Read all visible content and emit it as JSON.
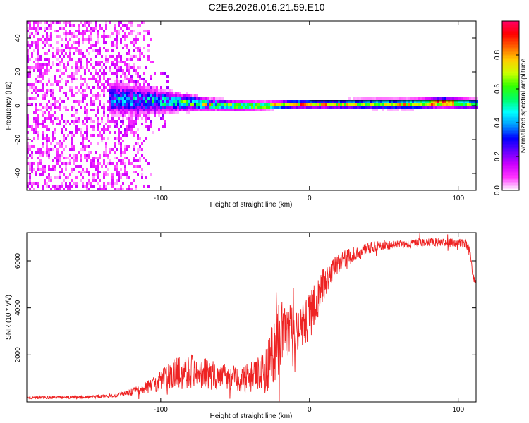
{
  "title": "C2E6.2026.016.21.59.E10",
  "colors": {
    "snr_line": "#ee2222",
    "axes": "#000000"
  },
  "chart_data": [
    {
      "type": "heatmap",
      "name": "spectrogram",
      "xlabel": "Height of straight line (km)",
      "ylabel": "Frequency (Hz)",
      "xlim": [
        -190,
        112
      ],
      "ylim": [
        -50,
        50
      ],
      "xticks": [
        -100,
        0,
        100
      ],
      "yticks": [
        -40,
        -20,
        0,
        20,
        40
      ],
      "colorbar": {
        "label": "Normalized spectral amplitude",
        "range": [
          0,
          1
        ],
        "ticks": [
          0.0,
          0.2,
          0.4,
          0.6,
          0.8
        ],
        "tick_labels": [
          "0.0",
          "0.2",
          "0.4",
          "0.6",
          "0.8"
        ],
        "colormap": [
          "#ffffff",
          "#ff33ff",
          "#cc00ff",
          "#6600ff",
          "#0000ff",
          "#0099ff",
          "#00ffff",
          "#00ff66",
          "#33ff00",
          "#ccff00",
          "#ffcc00",
          "#ff6600",
          "#ff0000",
          "#ff0066"
        ]
      },
      "noise_region": {
        "x_range": [
          -190,
          -105
        ],
        "amplitude": 0.12,
        "freq_range": [
          -50,
          50
        ]
      },
      "ridge": [
        {
          "x": -130,
          "center": 4,
          "halfwidth": 8,
          "amplitude": 0.35
        },
        {
          "x": -110,
          "center": 3,
          "halfwidth": 7,
          "amplitude": 0.4
        },
        {
          "x": -90,
          "center": 2,
          "halfwidth": 5,
          "amplitude": 0.45
        },
        {
          "x": -70,
          "center": 1,
          "halfwidth": 3,
          "amplitude": 0.6
        },
        {
          "x": -50,
          "center": 0,
          "halfwidth": 2.5,
          "amplitude": 0.65
        },
        {
          "x": -30,
          "center": 0,
          "halfwidth": 2,
          "amplitude": 0.75
        },
        {
          "x": -10,
          "center": 1,
          "halfwidth": 2,
          "amplitude": 0.8
        },
        {
          "x": 10,
          "center": 1,
          "halfwidth": 2,
          "amplitude": 0.75
        },
        {
          "x": 40,
          "center": 1,
          "halfwidth": 2.5,
          "amplitude": 0.65
        },
        {
          "x": 70,
          "center": 1,
          "halfwidth": 2.5,
          "amplitude": 0.75
        },
        {
          "x": 90,
          "center": 2,
          "halfwidth": 2.5,
          "amplitude": 0.95
        },
        {
          "x": 112,
          "center": 1,
          "halfwidth": 2.5,
          "amplitude": 0.55
        }
      ]
    },
    {
      "type": "line",
      "name": "snr",
      "xlabel": "Height of straight line (km)",
      "ylabel": "SNR (10 * v/v)",
      "xlim": [
        -190,
        112
      ],
      "ylim": [
        0,
        7200
      ],
      "xticks": [
        -100,
        0,
        100
      ],
      "yticks": [
        2000,
        4000,
        6000
      ],
      "envelope": {
        "x": [
          -190,
          -150,
          -130,
          -120,
          -110,
          -100,
          -90,
          -80,
          -70,
          -60,
          -50,
          -40,
          -30,
          -25,
          -20,
          -15,
          -10,
          -5,
          0,
          5,
          10,
          15,
          20,
          30,
          40,
          50,
          60,
          70,
          80,
          90,
          100,
          105,
          108,
          110,
          112
        ],
        "mean": [
          180,
          200,
          280,
          400,
          600,
          900,
          1200,
          1350,
          1200,
          1050,
          1000,
          1000,
          1250,
          2100,
          2700,
          2900,
          3050,
          3200,
          3600,
          4300,
          5100,
          5600,
          5900,
          6300,
          6550,
          6650,
          6700,
          6750,
          6800,
          6800,
          6750,
          6750,
          6350,
          5300,
          5100
        ],
        "spread": [
          60,
          60,
          80,
          150,
          250,
          450,
          700,
          750,
          650,
          600,
          550,
          650,
          900,
          1500,
          1600,
          1300,
          1100,
          1000,
          1000,
          900,
          700,
          500,
          450,
          300,
          250,
          200,
          180,
          180,
          180,
          180,
          200,
          200,
          200,
          150,
          150
        ]
      }
    }
  ]
}
